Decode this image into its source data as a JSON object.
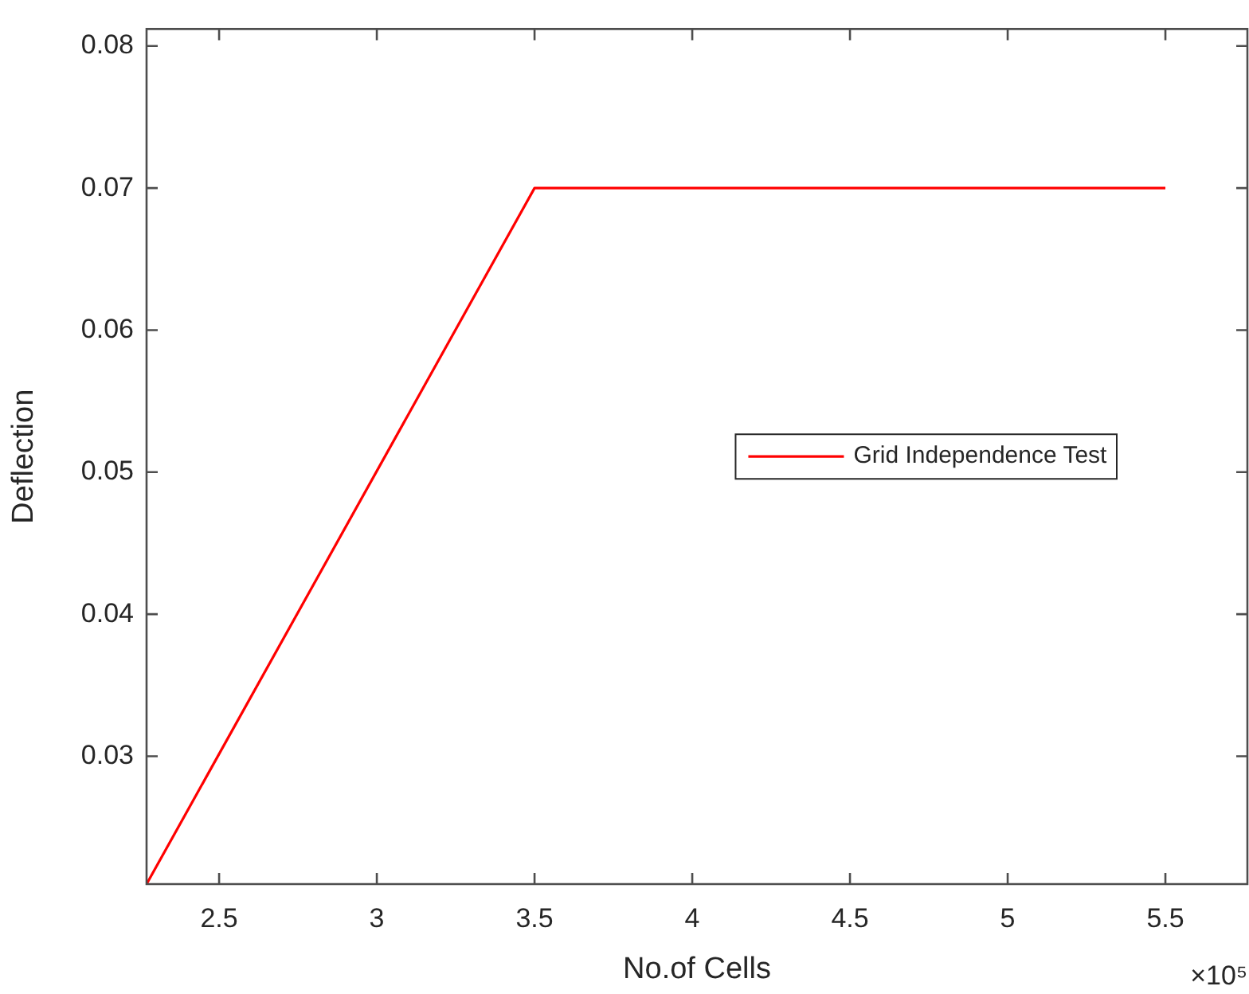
{
  "chart_data": {
    "type": "line",
    "xlabel": "No.of Cells",
    "ylabel": "Deflection",
    "x": [
      2.27,
      3.5,
      5.5
    ],
    "series": [
      {
        "name": "Grid Independence Test",
        "color": "#ff0000",
        "values": [
          0.021,
          0.07,
          0.07
        ]
      }
    ],
    "xlim": [
      2.27,
      5.76
    ],
    "ylim": [
      0.021,
      0.0812
    ],
    "xticks": [
      2.5,
      3,
      3.5,
      4,
      4.5,
      5,
      5.5
    ],
    "yticks": [
      {
        "value": 0.03,
        "label": "0.03"
      },
      {
        "value": 0.04,
        "label": "0.04"
      },
      {
        "value": 0.05,
        "label": "0.05"
      },
      {
        "value": 0.06,
        "label": "0.06"
      },
      {
        "value": 0.07,
        "label": "0.07"
      },
      {
        "value": 0.08,
        "label": "0.08"
      }
    ],
    "annotations": [
      "×10⁵"
    ],
    "grid": false,
    "legend": "right",
    "marker": "none",
    "line_style": "solid"
  }
}
